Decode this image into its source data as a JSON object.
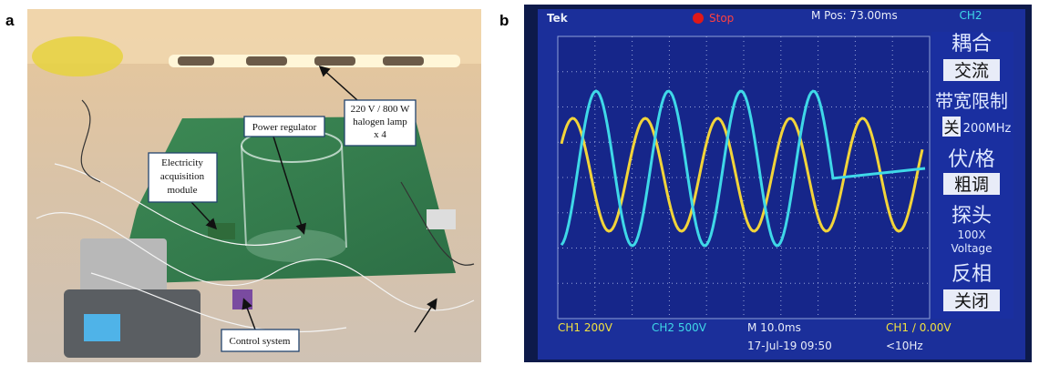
{
  "panel_a": {
    "label": "a",
    "lamp_note": [
      "220 V / 800 W",
      "halogen lamp",
      "x 4"
    ],
    "regulator_note": "Power regulator",
    "acquisition_note": [
      "Electricity",
      "acquisition",
      "module"
    ],
    "control_note": "Control system"
  },
  "panel_b": {
    "label": "b",
    "brand": "Tek",
    "state": "Stop",
    "position": "M Pos: 73.00ms",
    "channel": "CH2",
    "menu": [
      "耦合",
      "交流",
      "带宽限制",
      "关",
      "200MHz",
      "伏/格",
      "粗调",
      "探头",
      "100X",
      "Voltage",
      "反相",
      "关闭"
    ],
    "ch1_scale": "CH1  200V",
    "ch2_scale": "CH2  500V",
    "time_scale": "M 10.0ms",
    "trigger": "CH1 ∕ 0.00V",
    "timestamp": "17-Jul-19 09:50",
    "frequency": "<10Hz"
  }
}
